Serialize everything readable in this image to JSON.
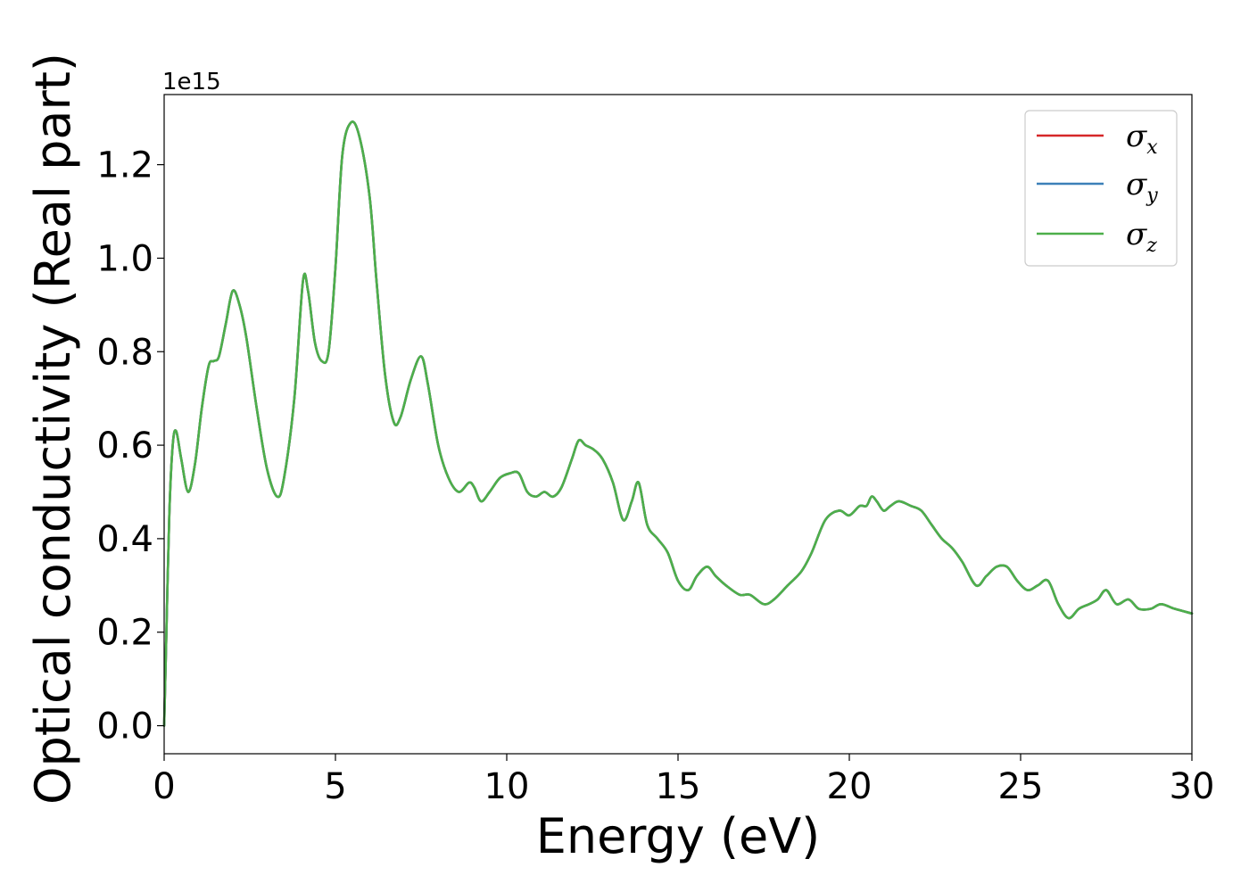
{
  "chart_data": {
    "type": "line",
    "title": "",
    "xlabel": "Energy (eV)",
    "ylabel": "Optical conductivity (Real part)",
    "y_offset_label": "1e15",
    "xlim": [
      0,
      30
    ],
    "ylim": [
      -0.06,
      1.35
    ],
    "xticks": [
      0,
      5,
      10,
      15,
      20,
      25,
      30
    ],
    "xtick_labels": [
      "0",
      "5",
      "10",
      "15",
      "20",
      "25",
      "30"
    ],
    "yticks": [
      0.0,
      0.2,
      0.4,
      0.6,
      0.8,
      1.0,
      1.2
    ],
    "ytick_labels": [
      "0.0",
      "0.2",
      "0.4",
      "0.6",
      "0.8",
      "1.0",
      "1.2"
    ],
    "grid": false,
    "legend_position": "top-right",
    "series": [
      {
        "name": "σx",
        "legend_symbol": "σ",
        "legend_subscript": "x",
        "color": "#d62728",
        "x": [
          0,
          0.05,
          0.15,
          0.25,
          0.35,
          0.5,
          0.7,
          0.9,
          1.1,
          1.3,
          1.45,
          1.6,
          1.8,
          2.0,
          2.2,
          2.4,
          2.7,
          3.0,
          3.3,
          3.5,
          3.8,
          4.05,
          4.2,
          4.4,
          4.6,
          4.8,
          5.0,
          5.2,
          5.45,
          5.7,
          6.0,
          6.2,
          6.45,
          6.7,
          6.9,
          7.2,
          7.5,
          7.7,
          8.0,
          8.3,
          8.6,
          8.9,
          9.05,
          9.25,
          9.5,
          9.8,
          10.1,
          10.35,
          10.6,
          10.85,
          11.1,
          11.35,
          11.6,
          11.9,
          12.1,
          12.3,
          12.55,
          12.8,
          13.1,
          13.4,
          13.65,
          13.85,
          14.1,
          14.4,
          14.7,
          15.0,
          15.3,
          15.55,
          15.85,
          16.1,
          16.4,
          16.8,
          17.1,
          17.5,
          17.8,
          18.2,
          18.6,
          18.9,
          19.3,
          19.7,
          20.0,
          20.3,
          20.5,
          20.65,
          20.8,
          21.0,
          21.2,
          21.45,
          21.8,
          22.1,
          22.4,
          22.7,
          23.0,
          23.3,
          23.7,
          24.0,
          24.3,
          24.6,
          24.9,
          25.2,
          25.5,
          25.8,
          26.1,
          26.4,
          26.7,
          27.0,
          27.25,
          27.5,
          27.8,
          28.15,
          28.45,
          28.8,
          29.1,
          29.5,
          30.0
        ],
        "y": [
          0.0,
          0.15,
          0.45,
          0.6,
          0.63,
          0.57,
          0.5,
          0.56,
          0.68,
          0.77,
          0.78,
          0.79,
          0.86,
          0.93,
          0.9,
          0.83,
          0.68,
          0.55,
          0.49,
          0.53,
          0.7,
          0.95,
          0.93,
          0.82,
          0.78,
          0.8,
          0.98,
          1.22,
          1.29,
          1.26,
          1.13,
          0.95,
          0.75,
          0.65,
          0.66,
          0.74,
          0.79,
          0.73,
          0.6,
          0.53,
          0.5,
          0.52,
          0.51,
          0.48,
          0.5,
          0.53,
          0.54,
          0.54,
          0.5,
          0.49,
          0.5,
          0.49,
          0.51,
          0.57,
          0.61,
          0.6,
          0.59,
          0.57,
          0.52,
          0.44,
          0.48,
          0.52,
          0.43,
          0.4,
          0.37,
          0.31,
          0.29,
          0.32,
          0.34,
          0.32,
          0.3,
          0.28,
          0.28,
          0.26,
          0.27,
          0.3,
          0.33,
          0.37,
          0.44,
          0.46,
          0.45,
          0.47,
          0.47,
          0.49,
          0.48,
          0.46,
          0.47,
          0.48,
          0.47,
          0.46,
          0.43,
          0.4,
          0.38,
          0.35,
          0.3,
          0.32,
          0.34,
          0.34,
          0.31,
          0.29,
          0.3,
          0.31,
          0.26,
          0.23,
          0.25,
          0.26,
          0.27,
          0.29,
          0.26,
          0.27,
          0.25,
          0.25,
          0.26,
          0.25,
          0.24
        ]
      },
      {
        "name": "σy",
        "legend_symbol": "σ",
        "legend_subscript": "y",
        "color": "#3c80b8",
        "x": [
          0,
          0.05,
          0.15,
          0.25,
          0.35,
          0.5,
          0.7,
          0.9,
          1.1,
          1.3,
          1.45,
          1.6,
          1.8,
          2.0,
          2.2,
          2.4,
          2.7,
          3.0,
          3.3,
          3.5,
          3.8,
          4.05,
          4.2,
          4.4,
          4.6,
          4.8,
          5.0,
          5.2,
          5.45,
          5.7,
          6.0,
          6.2,
          6.45,
          6.7,
          6.9,
          7.2,
          7.5,
          7.7,
          8.0,
          8.3,
          8.6,
          8.9,
          9.05,
          9.25,
          9.5,
          9.8,
          10.1,
          10.35,
          10.6,
          10.85,
          11.1,
          11.35,
          11.6,
          11.9,
          12.1,
          12.3,
          12.55,
          12.8,
          13.1,
          13.4,
          13.65,
          13.85,
          14.1,
          14.4,
          14.7,
          15.0,
          15.3,
          15.55,
          15.85,
          16.1,
          16.4,
          16.8,
          17.1,
          17.5,
          17.8,
          18.2,
          18.6,
          18.9,
          19.3,
          19.7,
          20.0,
          20.3,
          20.5,
          20.65,
          20.8,
          21.0,
          21.2,
          21.45,
          21.8,
          22.1,
          22.4,
          22.7,
          23.0,
          23.3,
          23.7,
          24.0,
          24.3,
          24.6,
          24.9,
          25.2,
          25.5,
          25.8,
          26.1,
          26.4,
          26.7,
          27.0,
          27.25,
          27.5,
          27.8,
          28.15,
          28.45,
          28.8,
          29.1,
          29.5,
          30.0
        ],
        "y": [
          0.0,
          0.15,
          0.45,
          0.6,
          0.63,
          0.57,
          0.5,
          0.56,
          0.68,
          0.77,
          0.78,
          0.79,
          0.86,
          0.93,
          0.9,
          0.83,
          0.68,
          0.55,
          0.49,
          0.53,
          0.7,
          0.95,
          0.93,
          0.82,
          0.78,
          0.8,
          0.98,
          1.22,
          1.29,
          1.26,
          1.13,
          0.95,
          0.75,
          0.65,
          0.66,
          0.74,
          0.79,
          0.73,
          0.6,
          0.53,
          0.5,
          0.52,
          0.51,
          0.48,
          0.5,
          0.53,
          0.54,
          0.54,
          0.5,
          0.49,
          0.5,
          0.49,
          0.51,
          0.57,
          0.61,
          0.6,
          0.59,
          0.57,
          0.52,
          0.44,
          0.48,
          0.52,
          0.43,
          0.4,
          0.37,
          0.31,
          0.29,
          0.32,
          0.34,
          0.32,
          0.3,
          0.28,
          0.28,
          0.26,
          0.27,
          0.3,
          0.33,
          0.37,
          0.44,
          0.46,
          0.45,
          0.47,
          0.47,
          0.49,
          0.48,
          0.46,
          0.47,
          0.48,
          0.47,
          0.46,
          0.43,
          0.4,
          0.38,
          0.35,
          0.3,
          0.32,
          0.34,
          0.34,
          0.31,
          0.29,
          0.3,
          0.31,
          0.26,
          0.23,
          0.25,
          0.26,
          0.27,
          0.29,
          0.26,
          0.27,
          0.25,
          0.25,
          0.26,
          0.25,
          0.24
        ]
      },
      {
        "name": "σz",
        "legend_symbol": "σ",
        "legend_subscript": "z",
        "color": "#4daf4a",
        "x": [
          0,
          0.05,
          0.15,
          0.25,
          0.35,
          0.5,
          0.7,
          0.9,
          1.1,
          1.3,
          1.45,
          1.6,
          1.8,
          2.0,
          2.2,
          2.4,
          2.7,
          3.0,
          3.3,
          3.5,
          3.8,
          4.05,
          4.2,
          4.4,
          4.6,
          4.8,
          5.0,
          5.2,
          5.45,
          5.7,
          6.0,
          6.2,
          6.45,
          6.7,
          6.9,
          7.2,
          7.5,
          7.7,
          8.0,
          8.3,
          8.6,
          8.9,
          9.05,
          9.25,
          9.5,
          9.8,
          10.1,
          10.35,
          10.6,
          10.85,
          11.1,
          11.35,
          11.6,
          11.9,
          12.1,
          12.3,
          12.55,
          12.8,
          13.1,
          13.4,
          13.65,
          13.85,
          14.1,
          14.4,
          14.7,
          15.0,
          15.3,
          15.55,
          15.85,
          16.1,
          16.4,
          16.8,
          17.1,
          17.5,
          17.8,
          18.2,
          18.6,
          18.9,
          19.3,
          19.7,
          20.0,
          20.3,
          20.5,
          20.65,
          20.8,
          21.0,
          21.2,
          21.45,
          21.8,
          22.1,
          22.4,
          22.7,
          23.0,
          23.3,
          23.7,
          24.0,
          24.3,
          24.6,
          24.9,
          25.2,
          25.5,
          25.8,
          26.1,
          26.4,
          26.7,
          27.0,
          27.25,
          27.5,
          27.8,
          28.15,
          28.45,
          28.8,
          29.1,
          29.5,
          30.0
        ],
        "y": [
          0.0,
          0.15,
          0.45,
          0.6,
          0.63,
          0.57,
          0.5,
          0.56,
          0.68,
          0.77,
          0.78,
          0.79,
          0.86,
          0.93,
          0.9,
          0.83,
          0.68,
          0.55,
          0.49,
          0.53,
          0.7,
          0.95,
          0.93,
          0.82,
          0.78,
          0.8,
          0.98,
          1.22,
          1.29,
          1.26,
          1.13,
          0.95,
          0.75,
          0.65,
          0.66,
          0.74,
          0.79,
          0.73,
          0.6,
          0.53,
          0.5,
          0.52,
          0.51,
          0.48,
          0.5,
          0.53,
          0.54,
          0.54,
          0.5,
          0.49,
          0.5,
          0.49,
          0.51,
          0.57,
          0.61,
          0.6,
          0.59,
          0.57,
          0.52,
          0.44,
          0.48,
          0.52,
          0.43,
          0.4,
          0.37,
          0.31,
          0.29,
          0.32,
          0.34,
          0.32,
          0.3,
          0.28,
          0.28,
          0.26,
          0.27,
          0.3,
          0.33,
          0.37,
          0.44,
          0.46,
          0.45,
          0.47,
          0.47,
          0.49,
          0.48,
          0.46,
          0.47,
          0.48,
          0.47,
          0.46,
          0.43,
          0.4,
          0.38,
          0.35,
          0.3,
          0.32,
          0.34,
          0.34,
          0.31,
          0.29,
          0.3,
          0.31,
          0.26,
          0.23,
          0.25,
          0.26,
          0.27,
          0.29,
          0.26,
          0.27,
          0.25,
          0.25,
          0.26,
          0.25,
          0.24
        ]
      }
    ]
  }
}
